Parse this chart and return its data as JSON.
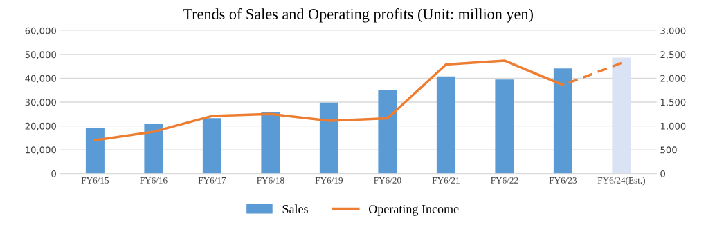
{
  "chart_data": {
    "type": "bar",
    "title": "Trends of Sales and Operating profits (Unit: million yen)",
    "categories": [
      "FY6/15",
      "FY6/16",
      "FY6/17",
      "FY6/18",
      "FY6/19",
      "FY6/20",
      "FY6/21",
      "FY6/22",
      "FY6/23",
      "FY6/24(Est.)"
    ],
    "series": [
      {
        "name": "Sales",
        "color": "#5b9bd5",
        "colors": [
          "#5b9bd5",
          "#5b9bd5",
          "#5b9bd5",
          "#5b9bd5",
          "#5b9bd5",
          "#5b9bd5",
          "#5b9bd5",
          "#5b9bd5",
          "#5b9bd5",
          "#dae3f3"
        ],
        "values": [
          19000,
          20800,
          23300,
          25800,
          29800,
          34900,
          40800,
          39500,
          44100,
          48700
        ]
      },
      {
        "name": "Operating Income",
        "type": "line",
        "axis": "y2",
        "color": "#ed7d31",
        "line_style": "solid",
        "values": [
          700,
          880,
          1210,
          1250,
          1110,
          1160,
          2290,
          2370,
          1860,
          null
        ]
      },
      {
        "type": "line",
        "axis": "y2",
        "color": "#ed7d31",
        "line_style": "dashed",
        "values": [
          null,
          null,
          null,
          null,
          null,
          null,
          null,
          null,
          1860,
          2320
        ]
      }
    ],
    "ylim": [
      0,
      60000
    ],
    "yticks": [
      0,
      {
        "value": 10000,
        "label": "10,000"
      },
      {
        "value": 20000,
        "label": "20,000"
      },
      {
        "value": 30000,
        "label": "30,000"
      },
      {
        "value": 40000,
        "label": "40,000"
      },
      {
        "value": 50000,
        "label": "50,000"
      },
      {
        "value": 60000,
        "label": "60,000"
      }
    ],
    "y2lim": [
      0,
      3000
    ],
    "y2ticks": [
      0,
      500,
      {
        "value": 1000,
        "label": "1,000"
      },
      {
        "value": 1500,
        "label": "1,500"
      },
      {
        "value": 2000,
        "label": "2,000"
      },
      {
        "value": 2500,
        "label": "2,500"
      },
      {
        "value": 3000,
        "label": "3,000"
      }
    ],
    "grid": "y",
    "legend": "bottom"
  }
}
